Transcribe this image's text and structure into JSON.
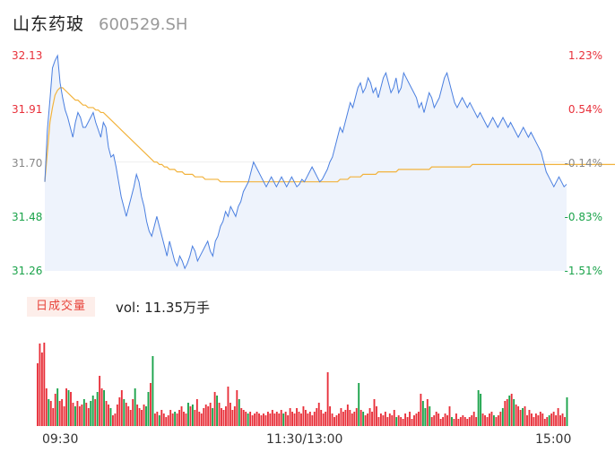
{
  "header": {
    "name": "山东药玻",
    "code": "600529.SH"
  },
  "volume": {
    "tab_label": "日成交量",
    "prefix": "vol:",
    "value": "11.35万手"
  },
  "colors": {
    "up": "#e8303a",
    "down": "#1aa34a",
    "flat": "#888888",
    "price_line": "#4a7fe0",
    "avg_line": "#f2b33d",
    "area_fill": "#eef3fc"
  },
  "chart_data": {
    "type": "line",
    "y_ticks": [
      {
        "price": "32.13",
        "pct": "1.23%",
        "dir": "up"
      },
      {
        "price": "31.91",
        "pct": "0.54%",
        "dir": "up"
      },
      {
        "price": "31.70",
        "pct": "-0.14%",
        "dir": "flat"
      },
      {
        "price": "31.48",
        "pct": "-0.83%",
        "dir": "down"
      },
      {
        "price": "31.26",
        "pct": "-1.51%",
        "dir": "down"
      }
    ],
    "ylim": [
      31.26,
      32.13
    ],
    "x_ticks": [
      "09:30",
      "11:30/13:00",
      "15:00"
    ],
    "minutes": 240,
    "price": [
      31.62,
      31.83,
      31.95,
      32.08,
      32.11,
      32.13,
      32.02,
      31.96,
      31.91,
      31.88,
      31.84,
      31.8,
      31.86,
      31.9,
      31.88,
      31.84,
      31.84,
      31.86,
      31.88,
      31.9,
      31.86,
      31.83,
      31.8,
      31.86,
      31.84,
      31.76,
      31.72,
      31.73,
      31.68,
      31.62,
      31.56,
      31.52,
      31.48,
      31.52,
      31.56,
      31.6,
      31.65,
      31.62,
      31.56,
      31.52,
      31.46,
      31.42,
      31.4,
      31.44,
      31.48,
      31.44,
      31.4,
      31.36,
      31.32,
      31.38,
      31.34,
      31.3,
      31.28,
      31.32,
      31.3,
      31.27,
      31.29,
      31.32,
      31.36,
      31.34,
      31.3,
      31.32,
      31.34,
      31.36,
      31.38,
      31.34,
      31.32,
      31.38,
      31.4,
      31.44,
      31.46,
      31.5,
      31.48,
      31.52,
      31.5,
      31.48,
      31.52,
      31.54,
      31.58,
      31.6,
      31.62,
      31.66,
      31.7,
      31.68,
      31.66,
      31.64,
      31.62,
      31.6,
      31.62,
      31.64,
      31.62,
      31.6,
      31.62,
      31.64,
      31.62,
      31.6,
      31.62,
      31.64,
      31.62,
      31.6,
      31.61,
      31.63,
      31.62,
      31.64,
      31.66,
      31.68,
      31.66,
      31.64,
      31.62,
      31.63,
      31.65,
      31.67,
      31.7,
      31.72,
      31.76,
      31.8,
      31.84,
      31.82,
      31.86,
      31.9,
      31.94,
      31.92,
      31.96,
      32.0,
      32.02,
      31.98,
      32.0,
      32.04,
      32.02,
      31.98,
      32.0,
      31.96,
      32.0,
      32.04,
      32.06,
      32.02,
      31.98,
      32.0,
      32.04,
      31.98,
      32.0,
      32.06,
      32.04,
      32.02,
      32.0,
      31.98,
      31.96,
      31.92,
      31.94,
      31.9,
      31.94,
      31.98,
      31.96,
      31.92,
      31.94,
      31.96,
      32.0,
      32.04,
      32.06,
      32.02,
      31.98,
      31.94,
      31.92,
      31.94,
      31.96,
      31.94,
      31.92,
      31.94,
      31.92,
      31.9,
      31.88,
      31.9,
      31.88,
      31.86,
      31.84,
      31.86,
      31.88,
      31.86,
      31.84,
      31.86,
      31.88,
      31.86,
      31.84,
      31.86,
      31.84,
      31.82,
      31.8,
      31.82,
      31.84,
      31.82,
      31.8,
      31.82,
      31.8,
      31.78,
      31.76,
      31.74,
      31.7,
      31.66,
      31.64,
      31.62,
      31.6,
      31.62,
      31.64,
      31.62,
      31.6,
      31.61
    ],
    "avg": [
      31.62,
      31.74,
      31.86,
      31.92,
      31.97,
      31.99,
      32.0,
      32.0,
      31.99,
      31.98,
      31.97,
      31.96,
      31.95,
      31.95,
      31.94,
      31.93,
      31.93,
      31.92,
      31.92,
      31.92,
      31.91,
      31.91,
      31.9,
      31.9,
      31.89,
      31.88,
      31.87,
      31.86,
      31.85,
      31.84,
      31.83,
      31.82,
      31.81,
      31.8,
      31.79,
      31.78,
      31.77,
      31.76,
      31.75,
      31.74,
      31.73,
      31.72,
      31.71,
      31.7,
      31.7,
      31.69,
      31.69,
      31.68,
      31.68,
      31.67,
      31.67,
      31.67,
      31.66,
      31.66,
      31.66,
      31.65,
      31.65,
      31.65,
      31.65,
      31.64,
      31.64,
      31.64,
      31.64,
      31.63,
      31.63,
      31.63,
      31.63,
      31.63,
      31.63,
      31.62,
      31.62,
      31.62,
      31.62,
      31.62,
      31.62,
      31.62,
      31.62,
      31.62,
      31.62,
      31.62,
      31.62,
      31.62,
      31.62,
      31.62,
      31.62,
      31.62,
      31.62,
      31.62,
      31.62,
      31.62,
      31.62,
      31.62,
      31.62,
      31.62,
      31.62,
      31.62,
      31.62,
      31.62,
      31.62,
      31.62,
      31.62,
      31.62,
      31.62,
      31.62,
      31.62,
      31.62,
      31.62,
      31.62,
      31.62,
      31.62,
      31.62,
      31.62,
      31.62,
      31.62,
      31.62,
      31.62,
      31.63,
      31.63,
      31.63,
      31.63,
      31.64,
      31.64,
      31.64,
      31.64,
      31.64,
      31.65,
      31.65,
      31.65,
      31.65,
      31.65,
      31.65,
      31.66,
      31.66,
      31.66,
      31.66,
      31.66,
      31.66,
      31.66,
      31.66,
      31.67,
      31.67,
      31.67,
      31.67,
      31.67,
      31.67,
      31.67,
      31.67,
      31.67,
      31.67,
      31.67,
      31.67,
      31.67,
      31.68,
      31.68,
      31.68,
      31.68,
      31.68,
      31.68,
      31.68,
      31.68,
      31.68,
      31.68,
      31.68,
      31.68,
      31.68,
      31.68,
      31.68,
      31.68,
      31.69,
      31.69,
      31.69,
      31.69,
      31.69,
      31.69,
      31.69,
      31.69,
      31.69,
      31.69,
      31.69,
      31.69,
      31.69,
      31.69,
      31.69,
      31.69,
      31.69,
      31.69,
      31.69,
      31.69,
      31.69,
      31.69,
      31.69,
      31.69,
      31.69,
      31.69,
      31.69,
      31.69,
      31.69,
      31.69,
      31.69,
      31.69,
      31.69,
      31.69,
      31.69,
      31.69,
      31.69,
      31.69,
      31.69,
      31.69,
      31.69,
      31.69,
      31.69,
      31.69,
      31.69,
      31.69,
      31.69,
      31.69,
      31.69,
      31.69,
      31.69,
      31.69,
      31.69,
      31.69,
      31.69,
      31.69,
      31.69,
      31.69,
      31.69,
      31.69,
      31.69,
      31.69,
      31.69,
      31.69,
      31.69
    ],
    "volume_bars": [
      [
        70,
        1
      ],
      [
        92,
        1
      ],
      [
        82,
        1
      ],
      [
        93,
        1
      ],
      [
        42,
        1
      ],
      [
        30,
        0
      ],
      [
        28,
        1
      ],
      [
        20,
        1
      ],
      [
        36,
        1
      ],
      [
        42,
        0
      ],
      [
        28,
        1
      ],
      [
        30,
        1
      ],
      [
        22,
        1
      ],
      [
        42,
        1
      ],
      [
        40,
        0
      ],
      [
        38,
        1
      ],
      [
        26,
        1
      ],
      [
        22,
        0
      ],
      [
        28,
        1
      ],
      [
        22,
        1
      ],
      [
        24,
        1
      ],
      [
        30,
        0
      ],
      [
        26,
        1
      ],
      [
        20,
        1
      ],
      [
        28,
        0
      ],
      [
        34,
        0
      ],
      [
        30,
        1
      ],
      [
        38,
        0
      ],
      [
        56,
        1
      ],
      [
        42,
        1
      ],
      [
        40,
        0
      ],
      [
        28,
        1
      ],
      [
        24,
        1
      ],
      [
        20,
        0
      ],
      [
        12,
        1
      ],
      [
        14,
        1
      ],
      [
        24,
        1
      ],
      [
        32,
        1
      ],
      [
        40,
        1
      ],
      [
        30,
        0
      ],
      [
        26,
        1
      ],
      [
        22,
        1
      ],
      [
        18,
        1
      ],
      [
        30,
        1
      ],
      [
        42,
        0
      ],
      [
        24,
        1
      ],
      [
        20,
        1
      ],
      [
        18,
        1
      ],
      [
        24,
        1
      ],
      [
        22,
        0
      ],
      [
        38,
        0
      ],
      [
        48,
        1
      ],
      [
        78,
        0
      ],
      [
        14,
        1
      ],
      [
        16,
        1
      ],
      [
        12,
        0
      ],
      [
        18,
        1
      ],
      [
        14,
        1
      ],
      [
        10,
        1
      ],
      [
        12,
        1
      ],
      [
        18,
        1
      ],
      [
        14,
        1
      ],
      [
        16,
        0
      ],
      [
        14,
        1
      ],
      [
        18,
        1
      ],
      [
        22,
        1
      ],
      [
        16,
        1
      ],
      [
        14,
        1
      ],
      [
        26,
        0
      ],
      [
        22,
        1
      ],
      [
        24,
        0
      ],
      [
        18,
        1
      ],
      [
        30,
        1
      ],
      [
        16,
        1
      ],
      [
        14,
        1
      ],
      [
        20,
        1
      ],
      [
        24,
        1
      ],
      [
        22,
        1
      ],
      [
        26,
        1
      ],
      [
        20,
        0
      ],
      [
        38,
        1
      ],
      [
        34,
        0
      ],
      [
        26,
        1
      ],
      [
        20,
        1
      ],
      [
        18,
        1
      ],
      [
        22,
        1
      ],
      [
        44,
        1
      ],
      [
        26,
        1
      ],
      [
        18,
        1
      ],
      [
        22,
        1
      ],
      [
        40,
        1
      ],
      [
        30,
        0
      ],
      [
        20,
        1
      ],
      [
        18,
        1
      ],
      [
        16,
        1
      ],
      [
        14,
        0
      ],
      [
        16,
        1
      ],
      [
        12,
        1
      ],
      [
        14,
        1
      ],
      [
        16,
        1
      ],
      [
        14,
        1
      ],
      [
        12,
        1
      ],
      [
        14,
        1
      ],
      [
        12,
        1
      ],
      [
        16,
        1
      ],
      [
        14,
        1
      ],
      [
        18,
        1
      ],
      [
        14,
        1
      ],
      [
        16,
        1
      ],
      [
        14,
        1
      ],
      [
        18,
        1
      ],
      [
        14,
        0
      ],
      [
        16,
        1
      ],
      [
        12,
        1
      ],
      [
        20,
        1
      ],
      [
        16,
        1
      ],
      [
        14,
        1
      ],
      [
        20,
        1
      ],
      [
        16,
        1
      ],
      [
        14,
        1
      ],
      [
        22,
        1
      ],
      [
        18,
        1
      ],
      [
        14,
        1
      ],
      [
        16,
        1
      ],
      [
        12,
        1
      ],
      [
        16,
        1
      ],
      [
        20,
        1
      ],
      [
        26,
        1
      ],
      [
        18,
        1
      ],
      [
        14,
        1
      ],
      [
        16,
        1
      ],
      [
        60,
        1
      ],
      [
        22,
        1
      ],
      [
        14,
        1
      ],
      [
        10,
        1
      ],
      [
        12,
        1
      ],
      [
        14,
        1
      ],
      [
        20,
        1
      ],
      [
        16,
        1
      ],
      [
        18,
        1
      ],
      [
        24,
        1
      ],
      [
        18,
        1
      ],
      [
        14,
        1
      ],
      [
        16,
        1
      ],
      [
        20,
        1
      ],
      [
        48,
        0
      ],
      [
        18,
        1
      ],
      [
        16,
        0
      ],
      [
        12,
        1
      ],
      [
        14,
        1
      ],
      [
        20,
        1
      ],
      [
        16,
        1
      ],
      [
        30,
        1
      ],
      [
        22,
        1
      ],
      [
        10,
        1
      ],
      [
        14,
        1
      ],
      [
        12,
        1
      ],
      [
        16,
        1
      ],
      [
        10,
        1
      ],
      [
        14,
        1
      ],
      [
        12,
        1
      ],
      [
        18,
        1
      ],
      [
        10,
        0
      ],
      [
        12,
        1
      ],
      [
        10,
        1
      ],
      [
        8,
        1
      ],
      [
        14,
        1
      ],
      [
        10,
        1
      ],
      [
        16,
        1
      ],
      [
        8,
        1
      ],
      [
        12,
        1
      ],
      [
        14,
        1
      ],
      [
        16,
        1
      ],
      [
        36,
        1
      ],
      [
        28,
        0
      ],
      [
        20,
        0
      ],
      [
        30,
        1
      ],
      [
        22,
        0
      ],
      [
        10,
        1
      ],
      [
        12,
        1
      ],
      [
        16,
        1
      ],
      [
        14,
        1
      ],
      [
        8,
        1
      ],
      [
        10,
        1
      ],
      [
        14,
        1
      ],
      [
        12,
        1
      ],
      [
        22,
        1
      ],
      [
        10,
        0
      ],
      [
        8,
        1
      ],
      [
        14,
        1
      ],
      [
        8,
        1
      ],
      [
        10,
        1
      ],
      [
        12,
        1
      ],
      [
        10,
        1
      ],
      [
        8,
        1
      ],
      [
        10,
        1
      ],
      [
        12,
        1
      ],
      [
        16,
        1
      ],
      [
        10,
        1
      ],
      [
        40,
        0
      ],
      [
        36,
        0
      ],
      [
        14,
        1
      ],
      [
        12,
        1
      ],
      [
        10,
        1
      ],
      [
        14,
        1
      ],
      [
        16,
        1
      ],
      [
        12,
        0
      ],
      [
        10,
        1
      ],
      [
        12,
        1
      ],
      [
        16,
        1
      ],
      [
        20,
        0
      ],
      [
        28,
        1
      ],
      [
        30,
        1
      ],
      [
        34,
        0
      ],
      [
        36,
        1
      ],
      [
        30,
        0
      ],
      [
        24,
        1
      ],
      [
        22,
        1
      ],
      [
        18,
        1
      ],
      [
        20,
        0
      ],
      [
        22,
        1
      ],
      [
        12,
        1
      ],
      [
        18,
        1
      ],
      [
        14,
        1
      ],
      [
        10,
        1
      ],
      [
        14,
        1
      ],
      [
        12,
        1
      ],
      [
        16,
        1
      ],
      [
        14,
        1
      ],
      [
        8,
        1
      ],
      [
        10,
        1
      ],
      [
        12,
        0
      ],
      [
        14,
        1
      ],
      [
        16,
        1
      ],
      [
        12,
        1
      ],
      [
        20,
        1
      ],
      [
        12,
        1
      ],
      [
        14,
        1
      ],
      [
        10,
        1
      ],
      [
        32,
        0
      ]
    ]
  }
}
